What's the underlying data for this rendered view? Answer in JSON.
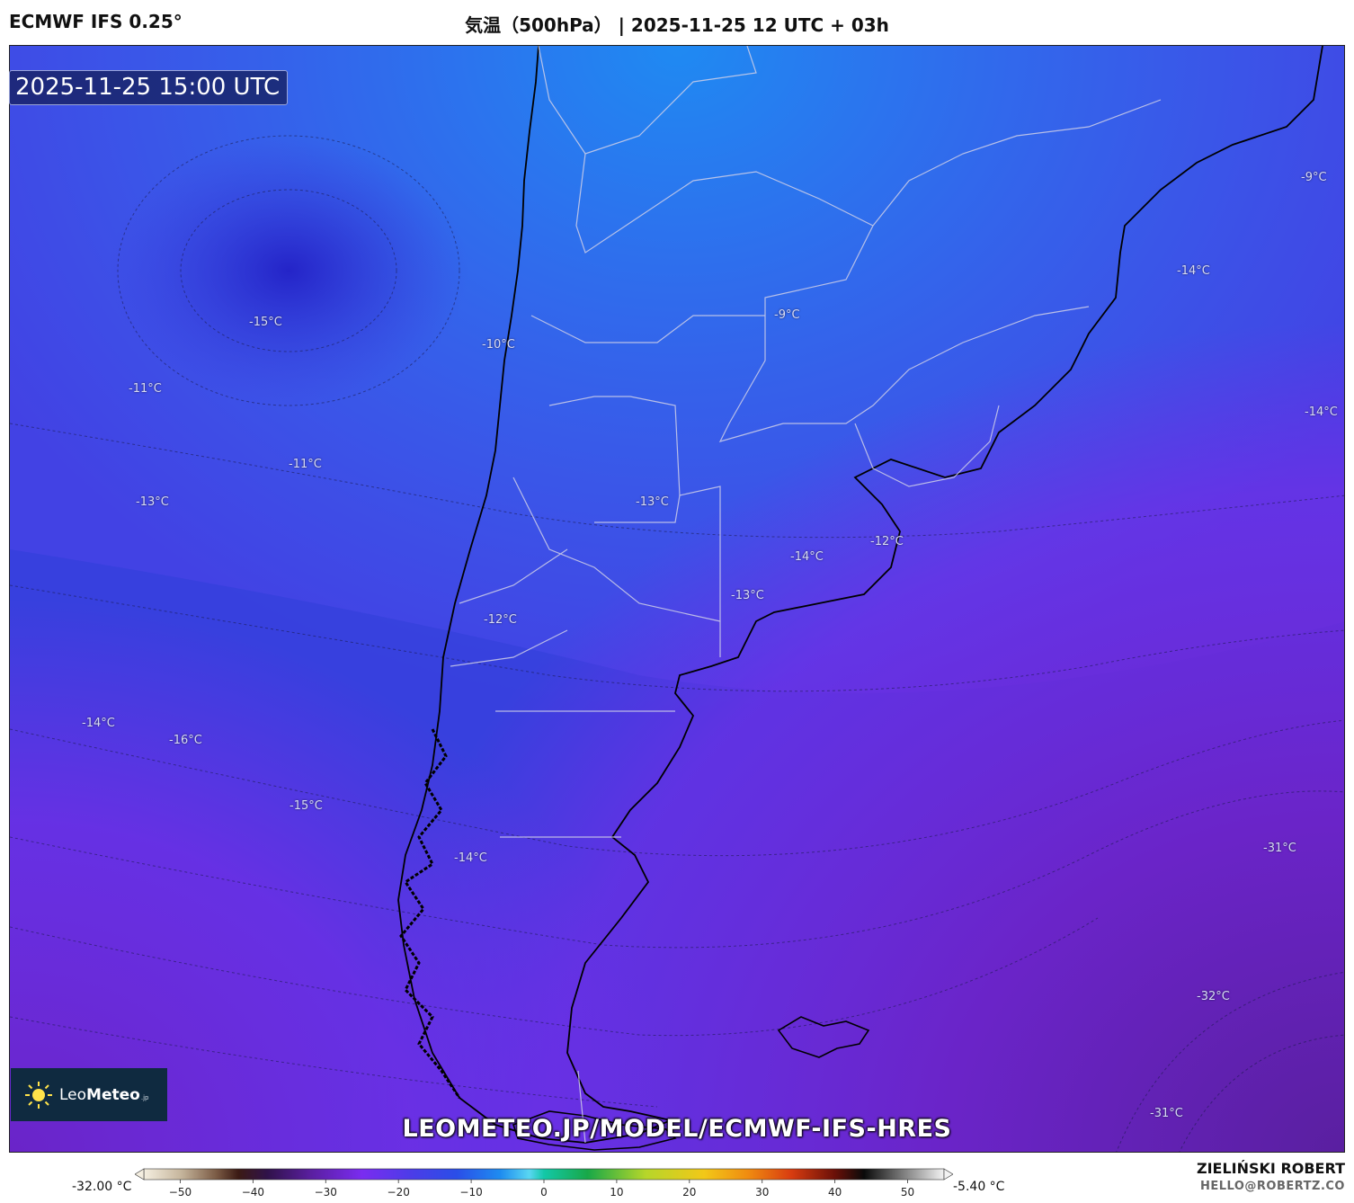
{
  "header": {
    "model": "ECMWF IFS 0.25°",
    "title": "気温（500hPa） | 2025-11-25 12 UTC + 03h"
  },
  "valid_time": "2025-11-25 15:00 UTC",
  "logo": {
    "light": "Leo",
    "bold": "Meteo",
    "suffix": ".jp"
  },
  "site_url": "LEOMETEO.JP/MODEL/ECMWF-IFS-HRES",
  "author": {
    "name": "ZIELIŃSKI ROBERT",
    "email": "HELLO@ROBERTZ.CO"
  },
  "colorbar": {
    "min_label": "-32.00 °C",
    "max_label": "-5.40 °C",
    "range": [
      -55,
      55
    ],
    "tick_values": [
      -50,
      -40,
      -30,
      -20,
      -10,
      0,
      10,
      20,
      30,
      40,
      50
    ],
    "tick_labels": [
      "−50",
      "−40",
      "−30",
      "−20",
      "−10",
      "0",
      "10",
      "20",
      "30",
      "40",
      "50"
    ],
    "stops": [
      {
        "v": -55,
        "c": "#f4eee0"
      },
      {
        "v": -50,
        "c": "#c7b79e"
      },
      {
        "v": -45,
        "c": "#7a5a44"
      },
      {
        "v": -42,
        "c": "#3b1a14"
      },
      {
        "v": -38,
        "c": "#30124a"
      },
      {
        "v": -32,
        "c": "#5a1fa0"
      },
      {
        "v": -25,
        "c": "#7a2cf0"
      },
      {
        "v": -18,
        "c": "#4a3de8"
      },
      {
        "v": -12,
        "c": "#2a4ee8"
      },
      {
        "v": -6,
        "c": "#1e8cf0"
      },
      {
        "v": -2,
        "c": "#59d6f2"
      },
      {
        "v": 0,
        "c": "#13c8a8"
      },
      {
        "v": 6,
        "c": "#18a848"
      },
      {
        "v": 14,
        "c": "#b6d62a"
      },
      {
        "v": 22,
        "c": "#f2c818"
      },
      {
        "v": 28,
        "c": "#f08c10"
      },
      {
        "v": 34,
        "c": "#d83c10"
      },
      {
        "v": 40,
        "c": "#6a1008"
      },
      {
        "v": 44,
        "c": "#0a0a0a"
      },
      {
        "v": 50,
        "c": "#8a8a8a"
      },
      {
        "v": 55,
        "c": "#f2f2f2"
      }
    ]
  },
  "map": {
    "colors": {
      "background": "#3f3fe6",
      "north_warm": "#2f7af0",
      "mid_blue": "#2f3fe2",
      "south_cold": "#7a2ae6",
      "deep_cold": "#5b1f9a",
      "coast": "#000000",
      "borders": "#d0d0e8"
    },
    "contour_labels": [
      "-15°C",
      "-11°C",
      "-11°C",
      "-13°C",
      "-10°C",
      "-9°C",
      "-14°C",
      "-9°C",
      "-14°C",
      "-13°C",
      "-12°C",
      "-14°C",
      "-13°C",
      "-12°C",
      "-14°C",
      "-16°C",
      "-15°C",
      "-14°C",
      "-31°C",
      "-32°C",
      "-31°C"
    ]
  }
}
